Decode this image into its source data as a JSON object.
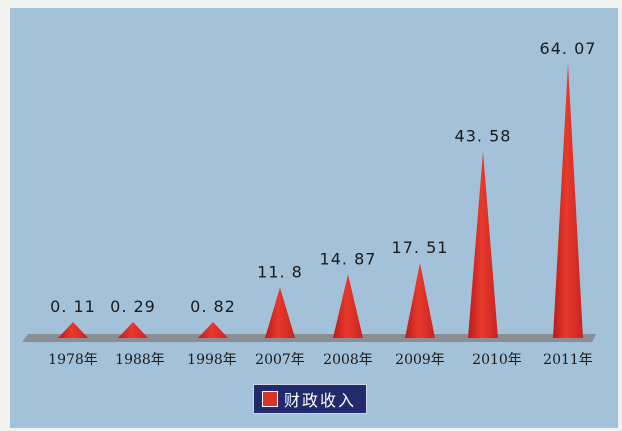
{
  "chart_data": {
    "type": "bar",
    "categories": [
      "1978年",
      "1988年",
      "1998年",
      "2007年",
      "2008年",
      "2009年",
      "2010年",
      "2011年"
    ],
    "value_labels": [
      "0. 11",
      "0. 29",
      "0. 82",
      "11. 8",
      "14. 87",
      "17. 51",
      "43. 58",
      "64. 07"
    ],
    "series": [
      {
        "name": "财政收入",
        "values": [
          0.11,
          0.29,
          0.82,
          11.8,
          14.87,
          17.51,
          43.58,
          64.07
        ]
      }
    ],
    "legend_position": "bottom-center",
    "grid": false
  },
  "colors": {
    "background": "#a3c2da",
    "bar": "#d8342a",
    "floor": "#8a8f96",
    "legend_bg": "#202a6c"
  }
}
